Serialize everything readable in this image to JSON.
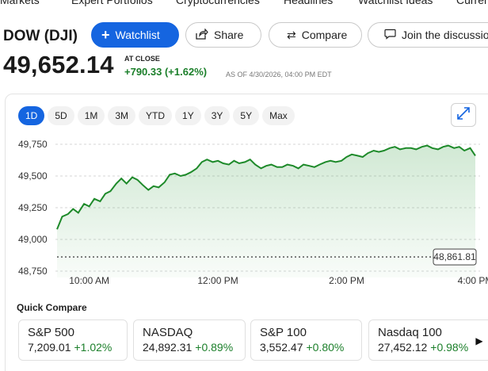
{
  "topnav": [
    "Markets",
    "Expert Portfolios",
    "Cryptocurrencies",
    "Headlines",
    "Watchlist Ideas",
    "Curren"
  ],
  "header": {
    "ticker": "DOW (DJI)",
    "watchlist_label": "Watchlist",
    "share_label": "Share",
    "compare_label": "Compare",
    "discuss_label": "Join the discussion"
  },
  "quote": {
    "price": "49,652.14",
    "at_close": "AT CLOSE",
    "change": "+790.33 (+1.62%)",
    "as_of": "AS OF 4/30/2026, 04:00 PM EDT"
  },
  "ranges": [
    "1D",
    "5D",
    "1M",
    "3M",
    "YTD",
    "1Y",
    "3Y",
    "5Y",
    "Max"
  ],
  "active_range": "1D",
  "colors": {
    "accent": "#1565e0",
    "up": "#1b7f2a",
    "line": "#1e8a2a"
  },
  "chart_data": {
    "type": "area",
    "ylim": [
      48700,
      49800
    ],
    "yticks": [
      49750,
      49500,
      49250,
      49000,
      48750
    ],
    "ytick_labels": [
      "49,750",
      "49,500",
      "49,250",
      "49,000",
      "48,750"
    ],
    "xticks": [
      10,
      12,
      14,
      16
    ],
    "xtick_labels": [
      "10:00 AM",
      "12:00 PM",
      "2:00 PM",
      "4:00 PM"
    ],
    "previous_close": 48861.81,
    "previous_close_label": "48,861.81",
    "x": [
      9.5,
      9.58,
      9.67,
      9.75,
      9.83,
      9.92,
      10.0,
      10.08,
      10.17,
      10.25,
      10.33,
      10.42,
      10.5,
      10.58,
      10.67,
      10.75,
      10.83,
      10.92,
      11.0,
      11.08,
      11.17,
      11.25,
      11.33,
      11.42,
      11.5,
      11.58,
      11.67,
      11.75,
      11.83,
      11.92,
      12.0,
      12.08,
      12.17,
      12.25,
      12.33,
      12.42,
      12.5,
      12.58,
      12.67,
      12.75,
      12.83,
      12.92,
      13.0,
      13.08,
      13.17,
      13.25,
      13.33,
      13.42,
      13.5,
      13.58,
      13.67,
      13.75,
      13.83,
      13.92,
      14.0,
      14.08,
      14.17,
      14.25,
      14.33,
      14.42,
      14.5,
      14.58,
      14.67,
      14.75,
      14.83,
      14.92,
      15.0,
      15.08,
      15.17,
      15.25,
      15.33,
      15.42,
      15.5,
      15.58,
      15.67,
      15.75,
      15.83,
      15.92,
      16.0
    ],
    "values": [
      49080,
      49180,
      49200,
      49240,
      49210,
      49280,
      49260,
      49320,
      49300,
      49360,
      49380,
      49440,
      49480,
      49440,
      49490,
      49470,
      49430,
      49390,
      49420,
      49410,
      49450,
      49510,
      49520,
      49500,
      49510,
      49530,
      49560,
      49610,
      49630,
      49610,
      49620,
      49600,
      49590,
      49620,
      49600,
      49610,
      49630,
      49590,
      49560,
      49580,
      49590,
      49570,
      49570,
      49590,
      49580,
      49560,
      49590,
      49580,
      49570,
      49590,
      49610,
      49620,
      49610,
      49620,
      49650,
      49670,
      49660,
      49650,
      49680,
      49700,
      49690,
      49700,
      49720,
      49730,
      49710,
      49720,
      49720,
      49710,
      49730,
      49740,
      49720,
      49710,
      49730,
      49740,
      49720,
      49730,
      49700,
      49720,
      49660
    ]
  },
  "quick_compare": {
    "title": "Quick Compare",
    "items": [
      {
        "name": "S&P 500",
        "value": "7,209.01",
        "change": "+1.02%"
      },
      {
        "name": "NASDAQ",
        "value": "24,892.31",
        "change": "+0.89%"
      },
      {
        "name": "S&P 100",
        "value": "3,552.47",
        "change": "+0.80%"
      },
      {
        "name": "Nasdaq 100",
        "value": "27,452.12",
        "change": "+0.98%"
      }
    ]
  }
}
